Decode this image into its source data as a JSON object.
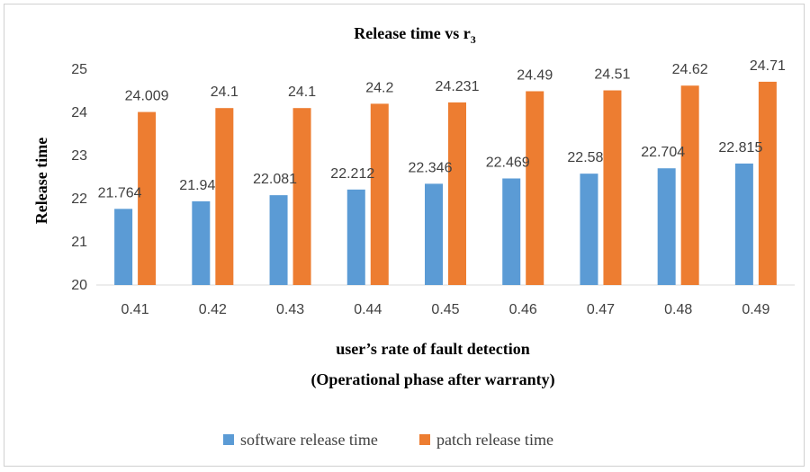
{
  "chart_data": {
    "type": "bar",
    "title": "Release time vs r",
    "title_subscript": "3",
    "xlabel_line1": "user’s rate of fault detection",
    "xlabel_line2": "(Operational phase after warranty)",
    "ylabel": "Release time",
    "ylim": [
      20,
      25
    ],
    "yticks": [
      "20",
      "21",
      "22",
      "23",
      "24",
      "25"
    ],
    "categories": [
      "0.41",
      "0.42",
      "0.43",
      "0.44",
      "0.45",
      "0.46",
      "0.47",
      "0.48",
      "0.49"
    ],
    "series": [
      {
        "name": "software release time",
        "color": "#5b9bd5",
        "values": [
          21.764,
          21.94,
          22.081,
          22.212,
          22.346,
          22.469,
          22.58,
          22.704,
          22.815
        ],
        "labels": [
          "21.764",
          "21.94",
          "22.081",
          "22.212",
          "22.346",
          "22.469",
          "22.58",
          "22.704",
          "22.815"
        ]
      },
      {
        "name": "patch release time",
        "color": "#ed7d31",
        "values": [
          24.009,
          24.1,
          24.1,
          24.2,
          24.231,
          24.49,
          24.51,
          24.62,
          24.71
        ],
        "labels": [
          "24.009",
          "24.1",
          "24.1",
          "24.2",
          "24.231",
          "24.49",
          "24.51",
          "24.62",
          "24.71"
        ]
      }
    ],
    "legend_position": "bottom",
    "gridlines": false
  }
}
